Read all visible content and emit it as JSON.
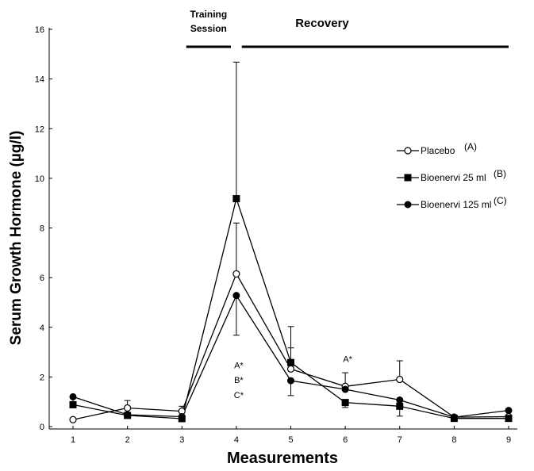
{
  "chart_data": {
    "type": "line",
    "xlabel": "Measurements",
    "ylabel": "Serum Growth Hormone (µg/l)",
    "x": [
      1,
      2,
      3,
      4,
      5,
      6,
      7,
      8,
      9
    ],
    "xlim": [
      1,
      9
    ],
    "ylim": [
      0,
      16
    ],
    "yticks": [
      0,
      2,
      4,
      6,
      8,
      10,
      12,
      14,
      16
    ],
    "grid": false,
    "legend_position": "right",
    "series": [
      {
        "name": "Placebo",
        "legend_suffix": "(A)",
        "marker": "open-circle",
        "values": [
          0.28,
          0.75,
          0.62,
          6.15,
          2.32,
          1.62,
          1.9,
          0.38,
          0.4
        ],
        "error_plus": [
          0,
          0.3,
          0.2,
          2.05,
          0.85,
          0.55,
          0.75,
          0,
          0
        ],
        "error_minus": [
          0,
          0,
          0,
          0,
          0,
          0,
          0,
          0,
          0
        ]
      },
      {
        "name": "Bioenervi 25 ml",
        "legend_suffix": "(B)",
        "marker": "filled-square",
        "values": [
          0.88,
          0.45,
          0.32,
          9.18,
          2.58,
          0.97,
          0.82,
          0.33,
          0.33
        ],
        "error_plus": [
          0.35,
          0,
          0,
          5.5,
          1.45,
          0,
          0,
          0,
          0
        ],
        "error_minus": [
          0,
          0,
          0,
          0,
          0,
          0.2,
          0.4,
          0,
          0
        ]
      },
      {
        "name": "Bioenervi 125 ml",
        "legend_suffix": "(C)",
        "marker": "filled-circle",
        "values": [
          1.2,
          0.48,
          0.4,
          5.28,
          1.85,
          1.5,
          1.07,
          0.38,
          0.65
        ],
        "error_plus": [
          0,
          0,
          0,
          0,
          0,
          0,
          0,
          0,
          0
        ],
        "error_minus": [
          0,
          0,
          0,
          1.6,
          0.6,
          0,
          0,
          0,
          0
        ]
      }
    ],
    "annotations": [
      {
        "text": "A*",
        "x": 4,
        "y": 2.35
      },
      {
        "text": "B*",
        "x": 4,
        "y": 1.75
      },
      {
        "text": "C*",
        "x": 4,
        "y": 1.15
      },
      {
        "text": "A*",
        "x": 6,
        "y": 2.6
      }
    ],
    "phases": [
      {
        "label_lines": [
          "Training",
          "Session"
        ],
        "x_start": 3.08,
        "x_end": 3.9
      },
      {
        "label_lines": [
          "Recovery"
        ],
        "x_start": 4.1,
        "x_end": 9.0
      }
    ]
  }
}
